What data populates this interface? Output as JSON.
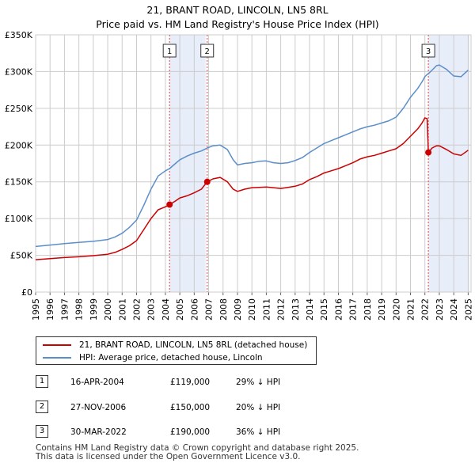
{
  "title_line1": "21, BRANT ROAD, LINCOLN, LN5 8RL",
  "title_line2": "Price paid vs. HM Land Registry's House Price Index (HPI)",
  "chart_data": {
    "type": "line",
    "title": "21, BRANT ROAD, LINCOLN, LN5 8RL — Price paid vs. HM Land Registry's House Price Index (HPI)",
    "xlabel": "",
    "ylabel": "",
    "xlim": [
      1995.0,
      2025.2
    ],
    "ylim": [
      0,
      350000
    ],
    "x_ticks": [
      "1995",
      "1996",
      "1997",
      "1998",
      "1999",
      "2000",
      "2001",
      "2002",
      "2003",
      "2004",
      "2005",
      "2006",
      "2007",
      "2008",
      "2009",
      "2010",
      "2011",
      "2012",
      "2013",
      "2014",
      "2015",
      "2016",
      "2017",
      "2018",
      "2019",
      "2020",
      "2021",
      "2022",
      "2023",
      "2024",
      "2025"
    ],
    "y_ticks": [
      "£0",
      "£50K",
      "£100K",
      "£150K",
      "£200K",
      "£250K",
      "£300K",
      "£350K"
    ],
    "y_tick_values": [
      0,
      50000,
      100000,
      150000,
      200000,
      250000,
      300000,
      350000
    ],
    "grid": true,
    "colors": {
      "property": "#cc0000",
      "hpi": "#5b8ec9",
      "shade": "#dde6f6",
      "marker_line": "#dd4444"
    },
    "series": [
      {
        "name": "21, BRANT ROAD, LINCOLN, LN5 8RL (detached house)",
        "x": [
          1995.0,
          1996.0,
          1997.0,
          1998.0,
          1999.0,
          2000.0,
          2000.5,
          2001.0,
          2001.5,
          2002.0,
          2002.5,
          2003.0,
          2003.5,
          2004.0,
          2004.29,
          2004.7,
          2005.0,
          2005.5,
          2006.0,
          2006.5,
          2006.9,
          2007.3,
          2007.8,
          2008.3,
          2008.7,
          2009.0,
          2009.5,
          2010.0,
          2010.5,
          2011.0,
          2011.5,
          2012.0,
          2012.5,
          2013.0,
          2013.5,
          2014.0,
          2014.5,
          2015.0,
          2015.5,
          2016.0,
          2016.5,
          2017.0,
          2017.5,
          2018.0,
          2018.5,
          2019.0,
          2019.5,
          2020.0,
          2020.5,
          2021.0,
          2021.5,
          2021.8,
          2022.0,
          2022.15,
          2022.24,
          2022.5,
          2022.8,
          2023.0,
          2023.5,
          2024.0,
          2024.5,
          2025.0
        ],
        "values": [
          44000,
          45500,
          47000,
          48000,
          49500,
          51500,
          54000,
          58000,
          63000,
          70000,
          85000,
          100000,
          112000,
          116000,
          119000,
          124000,
          128000,
          131000,
          135000,
          140000,
          150000,
          154000,
          156000,
          150000,
          140000,
          137000,
          140000,
          142000,
          142500,
          143000,
          142000,
          141000,
          142500,
          144000,
          147000,
          153000,
          157000,
          162000,
          165000,
          168000,
          172000,
          176000,
          181000,
          184000,
          186000,
          189000,
          192000,
          195000,
          202000,
          212000,
          222000,
          230000,
          237000,
          236000,
          190000,
          196000,
          199000,
          199000,
          194000,
          188000,
          186000,
          193000
        ]
      },
      {
        "name": "HPI: Average price, detached house, Lincoln",
        "x": [
          1995.0,
          1996.0,
          1997.0,
          1998.0,
          1999.0,
          2000.0,
          2000.5,
          2001.0,
          2001.5,
          2002.0,
          2002.5,
          2003.0,
          2003.5,
          2004.0,
          2004.29,
          2004.7,
          2005.0,
          2005.5,
          2006.0,
          2006.5,
          2006.9,
          2007.3,
          2007.8,
          2008.3,
          2008.7,
          2009.0,
          2009.5,
          2010.0,
          2010.5,
          2011.0,
          2011.5,
          2012.0,
          2012.5,
          2013.0,
          2013.5,
          2014.0,
          2014.5,
          2015.0,
          2015.5,
          2016.0,
          2016.5,
          2017.0,
          2017.5,
          2018.0,
          2018.5,
          2019.0,
          2019.5,
          2020.0,
          2020.5,
          2021.0,
          2021.5,
          2021.8,
          2022.0,
          2022.15,
          2022.24,
          2022.5,
          2022.8,
          2023.0,
          2023.5,
          2024.0,
          2024.5,
          2025.0
        ],
        "values": [
          62000,
          64000,
          66000,
          67500,
          69000,
          71500,
          75000,
          80000,
          88000,
          98000,
          118000,
          140000,
          158000,
          165000,
          168000,
          175000,
          180000,
          185000,
          189000,
          192000,
          196000,
          199000,
          200000,
          194000,
          180000,
          173000,
          175000,
          176000,
          178000,
          178500,
          176000,
          175000,
          176000,
          179000,
          183000,
          190000,
          196000,
          202000,
          206000,
          210000,
          214000,
          218000,
          222000,
          225000,
          227000,
          230000,
          233000,
          238000,
          250000,
          265000,
          277000,
          286000,
          293000,
          296000,
          297000,
          302000,
          308000,
          309000,
          303000,
          294000,
          293000,
          302000
        ]
      }
    ],
    "sales": [
      {
        "id": "1",
        "x": 2004.29,
        "value": 119000
      },
      {
        "id": "2",
        "x": 2006.9,
        "value": 150000
      },
      {
        "id": "3",
        "x": 2022.24,
        "value": 190000
      }
    ]
  },
  "legend": {
    "property_label": "21, BRANT ROAD, LINCOLN, LN5 8RL (detached house)",
    "hpi_label": "HPI: Average price, detached house, Lincoln"
  },
  "transactions": [
    {
      "id": "1",
      "date": "16-APR-2004",
      "price": "£119,000",
      "hpi": "29% ↓ HPI"
    },
    {
      "id": "2",
      "date": "27-NOV-2006",
      "price": "£150,000",
      "hpi": "20% ↓ HPI"
    },
    {
      "id": "3",
      "date": "30-MAR-2022",
      "price": "£190,000",
      "hpi": "36% ↓ HPI"
    }
  ],
  "footer_line1": "Contains HM Land Registry data © Crown copyright and database right 2025.",
  "footer_line2": "This data is licensed under the Open Government Licence v3.0."
}
